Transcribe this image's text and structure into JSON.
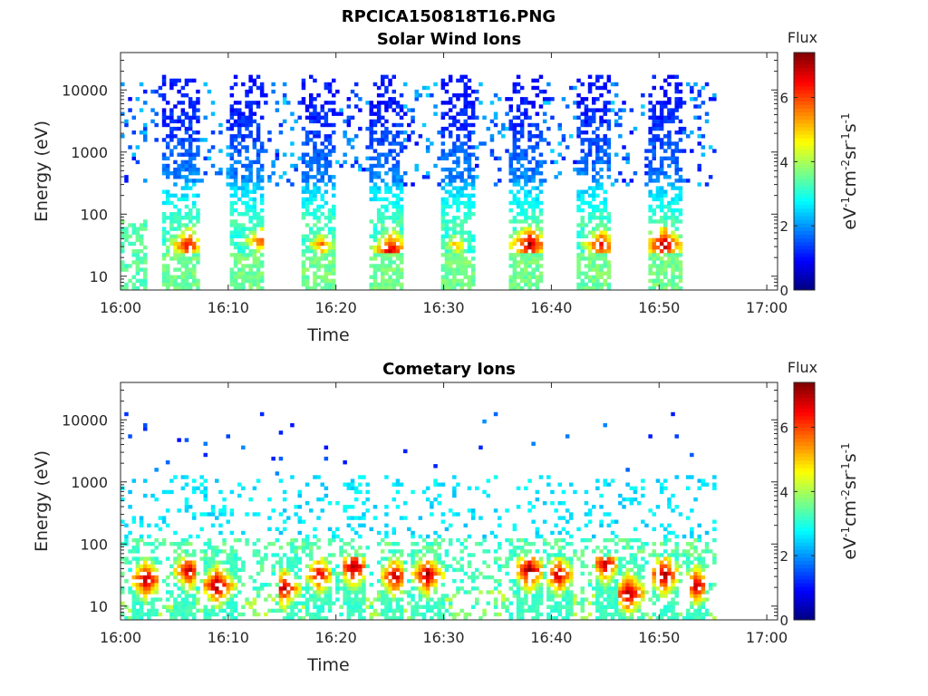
{
  "figure_title": "RPCICA150818T16.PNG",
  "chart_data": [
    {
      "type": "heatmap",
      "title": "Solar Wind Ions",
      "xlabel": "Time",
      "ylabel": "Energy (eV)",
      "x_ticks": [
        "16:00",
        "16:10",
        "16:20",
        "16:30",
        "16:40",
        "16:50",
        "17:00"
      ],
      "x_range_minutes": [
        0,
        61
      ],
      "y_scale": "log",
      "y_ticks": [
        "10",
        "100",
        "1000",
        "10000"
      ],
      "y_range": [
        6,
        40000
      ],
      "colorbar": {
        "title": "Flux",
        "label": "eV-1cm-2sr-1s-1",
        "ticks": [
          "0",
          "2",
          "4",
          "6"
        ],
        "range": [
          0,
          7.4
        ],
        "colormap": "jet"
      },
      "bursts": [
        {
          "start": 3.7,
          "end": 7.0,
          "peak_minute": 6.1,
          "peak_energy": 30,
          "peak_flux": 6.5
        },
        {
          "start": 10.0,
          "end": 13.2,
          "peak_minute": 12.8,
          "peak_energy": 35,
          "peak_flux": 5.8
        },
        {
          "start": 16.6,
          "end": 19.8,
          "peak_minute": 18.5,
          "peak_energy": 30,
          "peak_flux": 5.5
        },
        {
          "start": 23.0,
          "end": 26.2,
          "peak_minute": 25.0,
          "peak_energy": 25,
          "peak_flux": 6.8
        },
        {
          "start": 29.5,
          "end": 32.6,
          "peak_minute": 31.0,
          "peak_energy": 30,
          "peak_flux": 5.0
        },
        {
          "start": 35.8,
          "end": 39.2,
          "peak_minute": 37.8,
          "peak_energy": 30,
          "peak_flux": 7.0
        },
        {
          "start": 42.2,
          "end": 45.5,
          "peak_minute": 44.5,
          "peak_energy": 30,
          "peak_flux": 6.5
        },
        {
          "start": 48.8,
          "end": 52.0,
          "peak_minute": 50.3,
          "peak_energy": 30,
          "peak_flux": 7.0
        }
      ],
      "data_end_minute": 55
    },
    {
      "type": "heatmap",
      "title": "Cometary Ions",
      "xlabel": "Time",
      "ylabel": "Energy (eV)",
      "x_ticks": [
        "16:00",
        "16:10",
        "16:20",
        "16:30",
        "16:40",
        "16:50",
        "17:00"
      ],
      "x_range_minutes": [
        0,
        61
      ],
      "y_scale": "log",
      "y_ticks": [
        "10",
        "100",
        "1000",
        "10000"
      ],
      "y_range": [
        6,
        40000
      ],
      "colorbar": {
        "title": "Flux",
        "label": "eV-1cm-2sr-1s-1",
        "ticks": [
          "0",
          "2",
          "4",
          "6"
        ],
        "range": [
          0,
          7.4
        ],
        "colormap": "jet"
      },
      "bursts": [
        {
          "start": 0.8,
          "end": 3.2,
          "peak_minute": 2.2,
          "peak_energy": 25,
          "peak_flux": 7.2
        },
        {
          "start": 4.8,
          "end": 6.8,
          "peak_minute": 6.2,
          "peak_energy": 35,
          "peak_flux": 7.0
        },
        {
          "start": 7.5,
          "end": 10.5,
          "peak_minute": 8.8,
          "peak_energy": 20,
          "peak_flux": 7.3
        },
        {
          "start": 14.5,
          "end": 16.5,
          "peak_minute": 15.0,
          "peak_energy": 18,
          "peak_flux": 7.0
        },
        {
          "start": 17.0,
          "end": 19.5,
          "peak_minute": 18.3,
          "peak_energy": 30,
          "peak_flux": 6.8
        },
        {
          "start": 20.5,
          "end": 22.5,
          "peak_minute": 21.5,
          "peak_energy": 40,
          "peak_flux": 7.3
        },
        {
          "start": 24.0,
          "end": 26.0,
          "peak_minute": 25.3,
          "peak_energy": 28,
          "peak_flux": 7.0
        },
        {
          "start": 26.8,
          "end": 30.0,
          "peak_minute": 28.3,
          "peak_energy": 30,
          "peak_flux": 7.2
        },
        {
          "start": 36.5,
          "end": 39.0,
          "peak_minute": 37.8,
          "peak_energy": 35,
          "peak_flux": 7.3
        },
        {
          "start": 39.5,
          "end": 42.0,
          "peak_minute": 40.5,
          "peak_energy": 30,
          "peak_flux": 7.0
        },
        {
          "start": 44.0,
          "end": 46.0,
          "peak_minute": 44.8,
          "peak_energy": 45,
          "peak_flux": 7.0
        },
        {
          "start": 46.0,
          "end": 48.5,
          "peak_minute": 47.0,
          "peak_energy": 15,
          "peak_flux": 7.3
        },
        {
          "start": 49.2,
          "end": 51.5,
          "peak_minute": 50.3,
          "peak_energy": 30,
          "peak_flux": 7.3
        },
        {
          "start": 52.5,
          "end": 54.2,
          "peak_minute": 53.3,
          "peak_energy": 20,
          "peak_flux": 7.0
        }
      ],
      "data_end_minute": 55
    }
  ]
}
